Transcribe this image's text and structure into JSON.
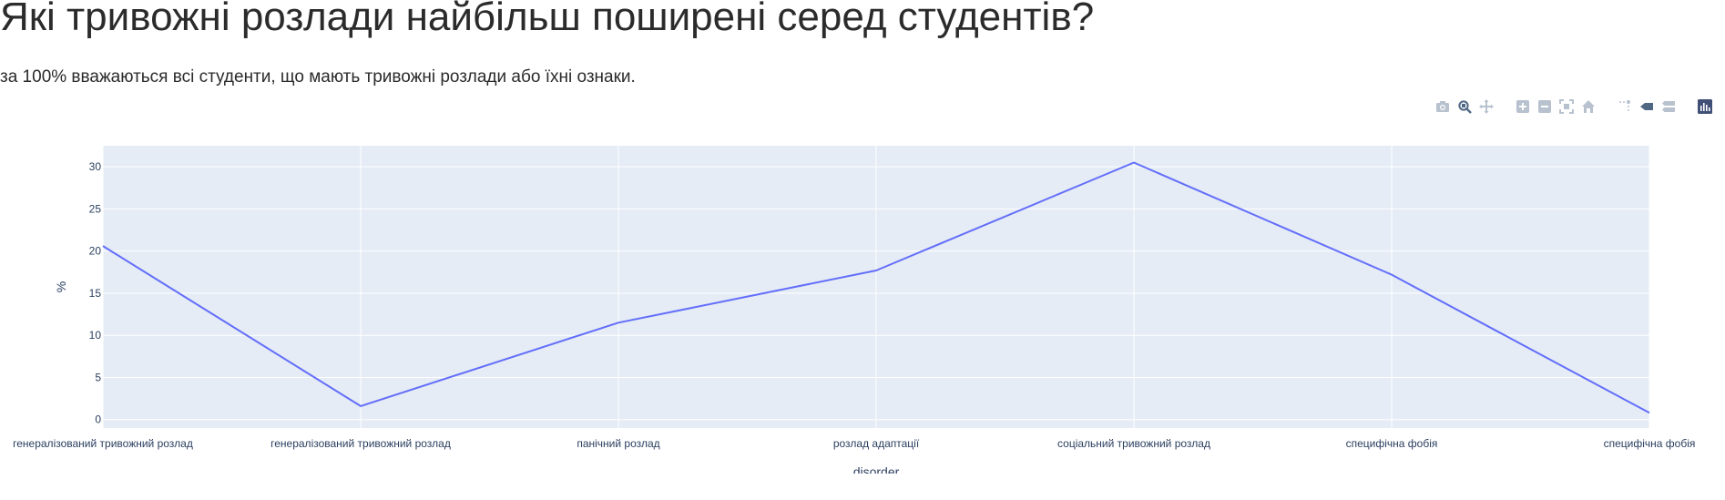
{
  "page": {
    "title": "Які тривожні розлади найбільш поширені серед студентів?",
    "subtitle": "за 100% вважаються всі студенти, що мають тривожні розлади або їхні ознаки."
  },
  "modebar": {
    "icons": [
      "camera-icon",
      "zoom-icon",
      "pan-icon",
      "zoom-in-icon",
      "zoom-out-icon",
      "autoscale-icon",
      "home-icon",
      "spike-lines-icon",
      "hover-closest-icon",
      "hover-compare-icon",
      "plotly-logo-icon"
    ]
  },
  "chart_data": {
    "type": "line",
    "categories": [
      "генералізований тривожний розлад",
      "генералізований тривожний розлад",
      "панічний розлад",
      "розлад адаптації",
      "соціальний тривожний розлад",
      "специфічна фобія",
      "специфічна фобія"
    ],
    "series": [
      {
        "values": [
          20.6,
          1.6,
          11.5,
          17.7,
          30.5,
          17.2,
          0.8
        ],
        "color": "#636efa"
      }
    ],
    "xlabel": "disorder",
    "ylabel": "%",
    "ylim": [
      -1,
      32.5
    ],
    "yticks": [
      0,
      5,
      10,
      15,
      20,
      25,
      30
    ],
    "grid": true,
    "plot_bg": "#e5ecf6",
    "grid_color": "#ffffff"
  }
}
